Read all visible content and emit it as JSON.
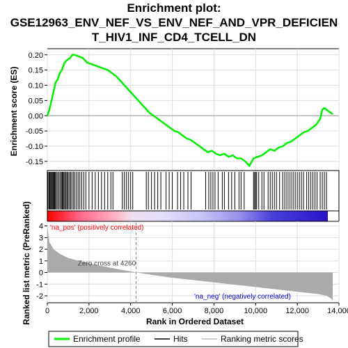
{
  "chart_data": {
    "type": "line",
    "title_line1": "Enrichment plot:",
    "title_line2": "GSE12963_ENV_NEF_VS_ENV_NEF_AND_VPR_DEFICIEN",
    "title_line3": "T_HIV1_INF_CD4_TCELL_DN",
    "xlabel": "Rank in Ordered Dataset",
    "ylabel_top": "Enrichment score (ES)",
    "ylabel_bottom": "Ranked list metric (PreRanked)",
    "xlim": [
      0,
      14000
    ],
    "x_ticks": [
      "0",
      "2,000",
      "4,000",
      "6,000",
      "8,000",
      "10,000",
      "12,000",
      "14,000"
    ],
    "x_tick_values": [
      0,
      2000,
      4000,
      6000,
      8000,
      10000,
      12000,
      14000
    ],
    "es_ylim": [
      -0.18,
      0.22
    ],
    "es_ticks": [
      "0.20",
      "0.15",
      "0.10",
      "0.05",
      "0.00",
      "-0.05",
      "-0.10",
      "-0.15"
    ],
    "es_tick_values": [
      0.2,
      0.15,
      0.1,
      0.05,
      0.0,
      -0.05,
      -0.1,
      -0.15
    ],
    "metric_ylim": [
      -2.6,
      4.4
    ],
    "metric_ticks": [
      "4",
      "3",
      "2",
      "1",
      "0",
      "-1",
      "-2"
    ],
    "metric_tick_values": [
      4,
      3,
      2,
      1,
      0,
      -1,
      -2
    ],
    "grid": true,
    "legend_placement": "bottom",
    "legend": [
      {
        "label": "Enrichment profile",
        "color": "#00ee00"
      },
      {
        "label": "Hits",
        "color": "#000000"
      },
      {
        "label": "Ranking metric scores",
        "color": "#bbbbbb"
      }
    ],
    "annotations": {
      "pos_label": "'na_pos' (positively correlated)",
      "neg_label": "'na_neg' (negatively correlated)",
      "zero_cross": "Zero cross at 4260",
      "zero_cross_x": 4260,
      "pos_color": "#ff0000",
      "neg_color": "#0000cc"
    },
    "series": [
      {
        "name": "Enrichment profile",
        "x": [
          0,
          100,
          200,
          300,
          400,
          500,
          600,
          700,
          800,
          900,
          1000,
          1100,
          1200,
          1300,
          1500,
          1700,
          1900,
          2100,
          2300,
          2500,
          2700,
          2900,
          3100,
          3300,
          3500,
          3700,
          3900,
          4100,
          4300,
          4500,
          4700,
          4900,
          5100,
          5300,
          5500,
          5700,
          5900,
          6100,
          6300,
          6500,
          6700,
          6900,
          7100,
          7300,
          7500,
          7700,
          7900,
          8100,
          8300,
          8500,
          8700,
          8900,
          9100,
          9300,
          9500,
          9700,
          9900,
          10100,
          10300,
          10500,
          10700,
          10900,
          11100,
          11300,
          11500,
          11700,
          11900,
          12100,
          12300,
          12500,
          12700,
          12900,
          13000,
          13100,
          13200,
          13300,
          13400,
          13500,
          13600,
          13700
        ],
        "y": [
          0.0,
          0.02,
          0.05,
          0.08,
          0.11,
          0.12,
          0.14,
          0.15,
          0.17,
          0.18,
          0.185,
          0.19,
          0.2,
          0.2,
          0.195,
          0.19,
          0.175,
          0.17,
          0.165,
          0.16,
          0.155,
          0.15,
          0.14,
          0.13,
          0.115,
          0.1,
          0.085,
          0.07,
          0.055,
          0.04,
          0.025,
          0.01,
          0.0,
          -0.01,
          -0.02,
          -0.03,
          -0.04,
          -0.05,
          -0.055,
          -0.065,
          -0.075,
          -0.08,
          -0.09,
          -0.1,
          -0.11,
          -0.12,
          -0.115,
          -0.125,
          -0.13,
          -0.125,
          -0.135,
          -0.13,
          -0.14,
          -0.14,
          -0.15,
          -0.165,
          -0.14,
          -0.135,
          -0.13,
          -0.12,
          -0.11,
          -0.115,
          -0.105,
          -0.1,
          -0.09,
          -0.085,
          -0.075,
          -0.065,
          -0.055,
          -0.05,
          -0.04,
          -0.03,
          -0.02,
          -0.01,
          0.02,
          0.025,
          0.02,
          0.015,
          0.01,
          0.005
        ]
      }
    ],
    "hits": [
      30,
      80,
      120,
      160,
      200,
      240,
      280,
      310,
      350,
      390,
      440,
      500,
      560,
      620,
      680,
      720,
      760,
      800,
      850,
      900,
      950,
      1000,
      1060,
      1120,
      1180,
      1250,
      1320,
      1400,
      1480,
      1560,
      1650,
      1750,
      1850,
      2000,
      2150,
      2300,
      2450,
      2600,
      2750,
      2900,
      3050,
      3150,
      3600,
      3700,
      3800,
      3900,
      4000,
      4100,
      4750,
      4850,
      5000,
      5150,
      5300,
      5450,
      5700,
      5850,
      6000,
      6250,
      6400,
      6550,
      6750,
      6900,
      7600,
      7750,
      7850,
      7950,
      8050,
      8200,
      8400,
      8500,
      8700,
      8850,
      9000,
      9200,
      9300,
      9450,
      9900,
      9950,
      10000,
      10050,
      10150,
      10300,
      10400,
      10600,
      10700,
      10800,
      10900,
      11000,
      11150,
      11300,
      11400,
      11500,
      11600,
      11700,
      11800,
      11900,
      12000,
      12100,
      12200,
      12300,
      12450,
      12550,
      12650,
      12750,
      12850,
      12950,
      13100,
      13200,
      13300,
      13400
    ],
    "metric_profile": {
      "x": [
        0,
        100,
        300,
        600,
        1000,
        1500,
        2000,
        2500,
        3000,
        3500,
        4000,
        4260,
        5000,
        6000,
        7000,
        8000,
        9000,
        10000,
        11000,
        12000,
        13000,
        13400,
        13600,
        13700
      ],
      "y": [
        4.0,
        2.6,
        2.0,
        1.6,
        1.25,
        1.0,
        0.8,
        0.6,
        0.42,
        0.25,
        0.1,
        0.0,
        -0.2,
        -0.45,
        -0.65,
        -0.85,
        -1.05,
        -1.25,
        -1.45,
        -1.65,
        -1.85,
        -2.0,
        -2.2,
        -2.4
      ]
    }
  }
}
